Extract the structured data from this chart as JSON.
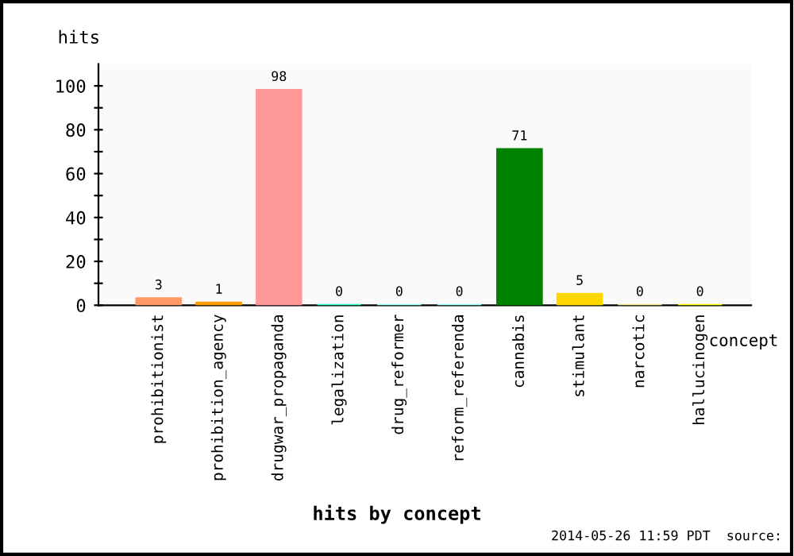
{
  "chart_data": {
    "type": "bar",
    "title": "hits by concept",
    "xlabel": "concept",
    "ylabel": "hits",
    "categories": [
      "prohibitionist",
      "prohibition_agency",
      "drugwar_propaganda",
      "legalization",
      "drug_reformer",
      "reform_referenda",
      "cannabis",
      "stimulant",
      "narcotic",
      "hallucinogen"
    ],
    "values": [
      3,
      1,
      98,
      0,
      0,
      0,
      71,
      5,
      0,
      0
    ],
    "colors": [
      "#ff9966",
      "#ff9900",
      "#ff9999",
      "#33ffcc",
      "#99ffff",
      "#99ffff",
      "#008000",
      "#ffd700",
      "#f0e68c",
      "#ffff00"
    ],
    "ylim": [
      0,
      110
    ],
    "yticks": [
      0,
      {
        "value": 10,
        "label": null
      },
      20,
      {
        "value": 30,
        "label": null
      },
      40,
      {
        "value": 50,
        "label": null
      },
      60,
      {
        "value": 70,
        "label": null
      },
      80,
      {
        "value": 90,
        "label": null
      },
      100
    ],
    "data_labels": true,
    "grid": false,
    "annotations": [
      "2014-05-26 11:59 PDT  source:"
    ]
  }
}
